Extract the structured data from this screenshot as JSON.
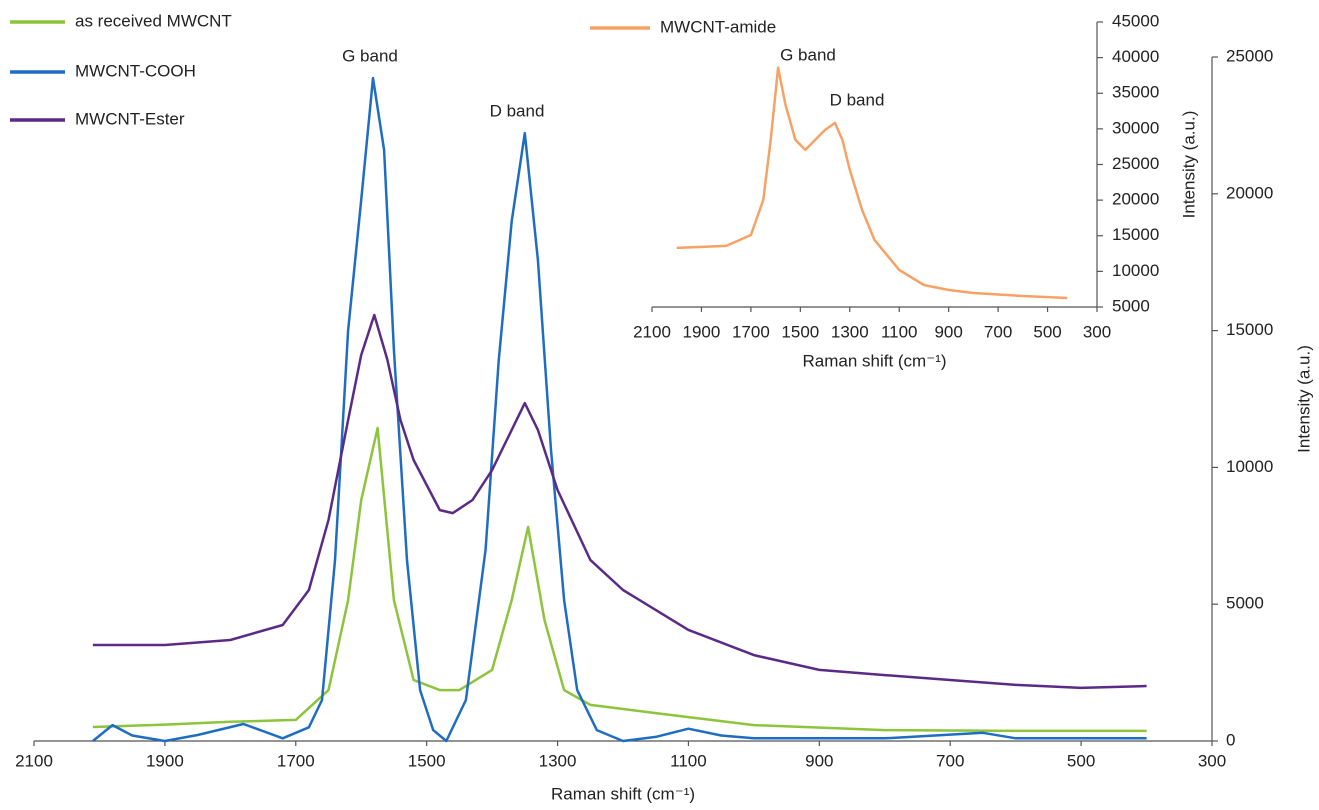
{
  "chart_data": [
    {
      "type": "line",
      "xlabel": "Raman shift (cm⁻¹)",
      "ylabel": "Intensity (a.u.)",
      "xlim": [
        2100,
        300
      ],
      "xticks": [
        2100,
        1900,
        1700,
        1500,
        1300,
        1100,
        900,
        700,
        500,
        300
      ],
      "ylim": [
        0,
        25000
      ],
      "yticks": [
        0,
        5000,
        10000,
        15000,
        20000,
        25000
      ],
      "annotations": [
        "G band",
        "D band"
      ],
      "series": [
        {
          "name": "as received MWCNT",
          "color": "#8cc43c",
          "x": [
            2010,
            1900,
            1800,
            1700,
            1650,
            1620,
            1600,
            1575,
            1550,
            1520,
            1480,
            1450,
            1400,
            1370,
            1345,
            1320,
            1290,
            1250,
            1150,
            1000,
            800,
            600,
            400
          ],
          "values": [
            510,
            600,
            700,
            770,
            1860,
            5150,
            8800,
            11440,
            5150,
            2230,
            1860,
            1860,
            2600,
            5150,
            7820,
            4420,
            1860,
            1320,
            1020,
            580,
            400,
            370,
            370
          ]
        },
        {
          "name": "MWCNT-COOH",
          "color": "#1f6dc2",
          "x": [
            2010,
            1980,
            1950,
            1900,
            1850,
            1780,
            1720,
            1680,
            1660,
            1640,
            1620,
            1600,
            1582,
            1565,
            1550,
            1530,
            1510,
            1490,
            1470,
            1440,
            1410,
            1390,
            1370,
            1350,
            1330,
            1310,
            1290,
            1270,
            1240,
            1200,
            1150,
            1100,
            1050,
            1000,
            800,
            650,
            600,
            400
          ],
          "values": [
            0,
            580,
            200,
            0,
            220,
            620,
            100,
            500,
            1500,
            6600,
            15000,
            19770,
            24230,
            21600,
            14300,
            6600,
            1860,
            400,
            0,
            1500,
            7000,
            13900,
            19000,
            22220,
            17580,
            10640,
            5150,
            1860,
            400,
            0,
            150,
            450,
            200,
            100,
            100,
            300,
            100,
            100
          ]
        },
        {
          "name": "MWCNT-Ester",
          "color": "#5b2a86",
          "x": [
            2010,
            1900,
            1800,
            1720,
            1680,
            1650,
            1620,
            1600,
            1580,
            1560,
            1540,
            1520,
            1480,
            1460,
            1430,
            1400,
            1370,
            1350,
            1330,
            1300,
            1250,
            1200,
            1100,
            1000,
            900,
            800,
            700,
            600,
            500,
            400
          ],
          "values": [
            3510,
            3510,
            3690,
            4240,
            5520,
            8080,
            11730,
            14110,
            15570,
            13930,
            11730,
            10270,
            8440,
            8330,
            8810,
            9900,
            11370,
            12350,
            11370,
            9170,
            6620,
            5520,
            4060,
            3140,
            2600,
            2410,
            2230,
            2050,
            1940,
            2010
          ]
        }
      ]
    },
    {
      "type": "line",
      "xlabel": "Raman shift (cm⁻¹)",
      "ylabel": "Intensity (a.u.)",
      "xlim": [
        2100,
        300
      ],
      "xticks": [
        2100,
        1900,
        1700,
        1500,
        1300,
        1100,
        900,
        700,
        500,
        300
      ],
      "ylim": [
        5000,
        45000
      ],
      "yticks": [
        5000,
        10000,
        15000,
        20000,
        25000,
        30000,
        35000,
        40000,
        45000
      ],
      "annotations": [
        "G band",
        "D band"
      ],
      "series": [
        {
          "name": "MWCNT-amide",
          "color": "#f7a265",
          "x": [
            2000,
            1800,
            1700,
            1650,
            1620,
            1590,
            1560,
            1520,
            1480,
            1440,
            1400,
            1360,
            1330,
            1300,
            1250,
            1200,
            1100,
            1000,
            900,
            800,
            600,
            420
          ],
          "values": [
            13290,
            13570,
            15110,
            20030,
            28450,
            38570,
            33370,
            28450,
            27050,
            28450,
            29860,
            30840,
            28450,
            24240,
            18620,
            14410,
            10200,
            8090,
            7390,
            6970,
            6550,
            6260
          ]
        }
      ]
    }
  ]
}
